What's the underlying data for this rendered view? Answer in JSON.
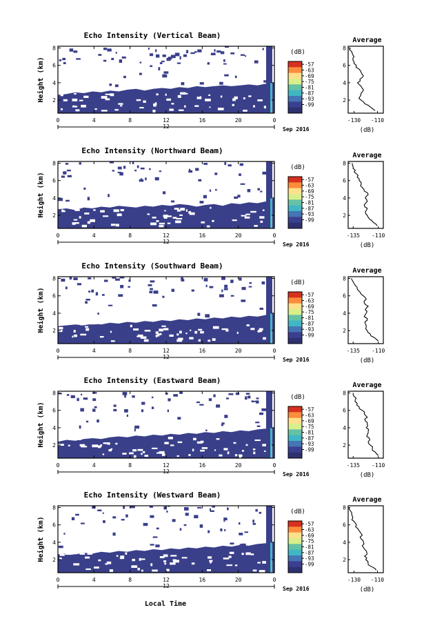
{
  "chart_data": {
    "type": "heatmap",
    "date_label": "Sep 2016",
    "date_tick": "12",
    "xlabel": "Local Time",
    "ylabel": "Height (km)",
    "x_ticks": [
      "0",
      "4",
      "8",
      "12",
      "16",
      "20",
      "0"
    ],
    "x_range_hours": [
      0,
      24
    ],
    "y_ticks": [
      "2",
      "4",
      "6",
      "8"
    ],
    "y_range_km": [
      0.5,
      8.2
    ],
    "colorbar": {
      "unit": "(dB)",
      "labels": [
        "-57",
        "-63",
        "-69",
        "-75",
        "-81",
        "-87",
        "-93",
        "-99"
      ],
      "colors": [
        "#d7301f",
        "#fc8d3c",
        "#fee08b",
        "#d9ef8b",
        "#66c2a5",
        "#41b6c4",
        "#4575b4",
        "#3b3f8f",
        "#2e3170"
      ]
    },
    "panels": [
      {
        "title": "Echo Intensity (Vertical Beam)",
        "avg_title": "Average",
        "avg_xlabel": "(dB)",
        "avg_xticks": [
          "-130",
          "-110"
        ],
        "avg_xrange": [
          -135,
          -105
        ],
        "avg_yticks": [
          "2",
          "4",
          "6",
          "8"
        ],
        "layer_top_km": [
          2.6,
          2.7,
          2.9,
          2.8,
          3.0,
          2.9,
          3.1,
          3.0,
          3.2,
          3.3,
          3.1,
          3.3,
          3.4,
          3.3,
          3.5,
          3.4,
          3.6,
          3.5,
          3.6,
          3.7,
          3.6,
          3.7,
          3.8,
          3.7,
          3.9
        ],
        "avg_profile": {
          "height_km": [
            0.8,
            1.2,
            1.6,
            2.0,
            2.4,
            2.8,
            3.2,
            3.6,
            4.0,
            4.4,
            4.8,
            5.2,
            5.6,
            6.0,
            6.4,
            6.8,
            7.2,
            7.6,
            8.0
          ],
          "value_db": [
            -112,
            -116,
            -121,
            -124,
            -125,
            -124,
            -122,
            -124,
            -127,
            -125,
            -122,
            -124,
            -126,
            -128,
            -130,
            -131,
            -131,
            -132,
            -133
          ]
        }
      },
      {
        "title": "Echo Intensity (Northward Beam)",
        "avg_title": "Average",
        "avg_xlabel": "(dB)",
        "avg_xticks": [
          "-135",
          "-110"
        ],
        "avg_xrange": [
          -140,
          -105
        ],
        "avg_yticks": [
          "2",
          "4",
          "6",
          "8"
        ],
        "layer_top_km": [
          2.7,
          2.8,
          2.6,
          2.9,
          2.8,
          3.0,
          2.9,
          3.1,
          3.0,
          2.9,
          3.1,
          3.0,
          3.2,
          3.1,
          3.3,
          3.2,
          3.0,
          3.2,
          3.3,
          3.1,
          3.4,
          3.3,
          3.5,
          3.4,
          3.6
        ],
        "avg_profile": {
          "height_km": [
            0.8,
            1.2,
            1.6,
            2.0,
            2.4,
            2.8,
            3.2,
            3.6,
            4.0,
            4.4,
            4.8,
            5.2,
            5.6,
            6.0,
            6.4,
            6.8,
            7.2,
            7.6,
            8.0
          ],
          "value_db": [
            -111,
            -115,
            -119,
            -121,
            -123,
            -121,
            -124,
            -121,
            -123,
            -120,
            -124,
            -126,
            -127,
            -129,
            -131,
            -132,
            -133,
            -135,
            -136
          ]
        }
      },
      {
        "title": "Echo Intensity (Southward Beam)",
        "avg_title": "Average",
        "avg_xlabel": "(dB)",
        "avg_xticks": [
          "-135",
          "-110"
        ],
        "avg_xrange": [
          -140,
          -105
        ],
        "avg_yticks": [
          "2",
          "4",
          "6",
          "8"
        ],
        "layer_top_km": [
          2.5,
          2.6,
          2.7,
          2.6,
          2.8,
          2.7,
          2.9,
          2.8,
          3.0,
          2.9,
          3.1,
          3.0,
          3.2,
          3.1,
          3.3,
          3.2,
          3.4,
          3.3,
          3.5,
          3.4,
          3.6,
          3.5,
          3.7,
          3.6,
          3.8
        ],
        "avg_profile": {
          "height_km": [
            0.8,
            1.2,
            1.6,
            2.0,
            2.4,
            2.8,
            3.2,
            3.6,
            4.0,
            4.4,
            4.8,
            5.2,
            5.6,
            6.0,
            6.4,
            6.8,
            7.2,
            7.6,
            8.0
          ],
          "value_db": [
            -110,
            -114,
            -118,
            -121,
            -122,
            -123,
            -121,
            -124,
            -122,
            -123,
            -120,
            -124,
            -122,
            -125,
            -128,
            -131,
            -133,
            -135,
            -137
          ]
        }
      },
      {
        "title": "Echo Intensity (Eastward Beam)",
        "avg_title": "Average",
        "avg_xlabel": "(dB)",
        "avg_xticks": [
          "-135",
          "-110"
        ],
        "avg_xrange": [
          -140,
          -105
        ],
        "avg_yticks": [
          "2",
          "4",
          "6",
          "8"
        ],
        "layer_top_km": [
          2.4,
          2.6,
          2.5,
          2.7,
          2.8,
          2.7,
          2.9,
          3.0,
          2.9,
          3.1,
          3.0,
          3.2,
          3.1,
          3.3,
          3.2,
          3.4,
          3.3,
          3.5,
          3.4,
          3.6,
          3.5,
          3.7,
          3.6,
          3.8,
          3.9
        ],
        "avg_profile": {
          "height_km": [
            0.8,
            1.2,
            1.6,
            2.0,
            2.4,
            2.8,
            3.2,
            3.6,
            4.0,
            4.4,
            4.8,
            5.2,
            5.6,
            6.0,
            6.4,
            6.8,
            7.2,
            7.6,
            8.0
          ],
          "value_db": [
            -110,
            -113,
            -116,
            -118,
            -120,
            -119,
            -121,
            -120,
            -122,
            -121,
            -123,
            -121,
            -124,
            -126,
            -129,
            -131,
            -133,
            -134,
            -135
          ]
        }
      },
      {
        "title": "Echo Intensity (Westward Beam)",
        "avg_title": "Average",
        "avg_xlabel": "(dB)",
        "avg_xticks": [
          "-130",
          "-110"
        ],
        "avg_xrange": [
          -135,
          -105
        ],
        "avg_yticks": [
          "2",
          "4",
          "6",
          "8"
        ],
        "layer_top_km": [
          2.6,
          2.7,
          2.6,
          2.8,
          2.7,
          2.9,
          2.8,
          3.0,
          2.9,
          3.1,
          3.0,
          3.2,
          3.1,
          3.3,
          3.2,
          3.4,
          3.3,
          3.5,
          3.4,
          3.6,
          3.5,
          3.7,
          3.6,
          3.8,
          3.9
        ],
        "avg_profile": {
          "height_km": [
            0.8,
            1.2,
            1.6,
            2.0,
            2.4,
            2.8,
            3.2,
            3.6,
            4.0,
            4.4,
            4.8,
            5.2,
            5.6,
            6.0,
            6.4,
            6.8,
            7.2,
            7.6,
            8.0
          ],
          "value_db": [
            -111,
            -115,
            -118,
            -120,
            -121,
            -119,
            -121,
            -123,
            -122,
            -124,
            -123,
            -125,
            -127,
            -128,
            -130,
            -131,
            -132,
            -133,
            -134
          ]
        }
      }
    ]
  }
}
